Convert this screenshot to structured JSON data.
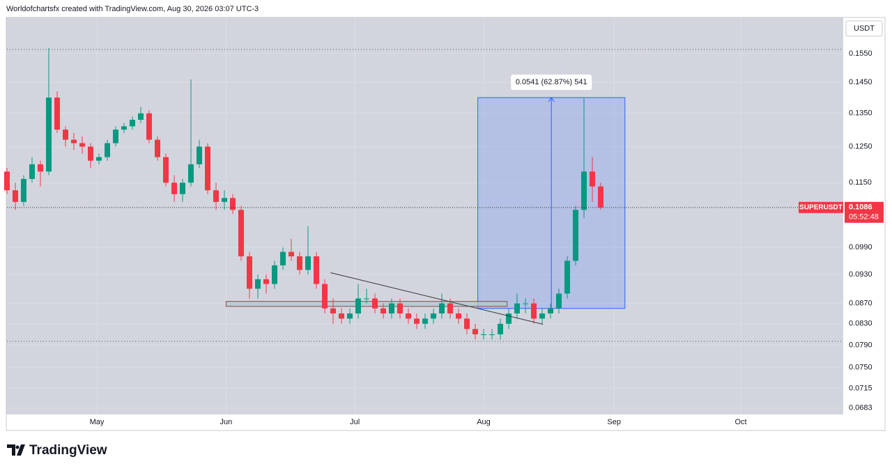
{
  "header": {
    "text": "Worldofchartsfx created with TradingView.com, Aug 30, 2026 03:07 UTC-3"
  },
  "footer": {
    "brand": "TradingView"
  },
  "chart_data": {
    "type": "candlestick",
    "symbol": "SUPERUSDT",
    "currency": "USDT",
    "last_price": 0.1086,
    "countdown": "05:52:48",
    "log_scale": true,
    "grid": true,
    "up_color": "#089981",
    "down_color": "#f23645",
    "x": [
      0,
      1,
      2,
      3,
      4,
      5,
      6,
      7,
      8,
      9,
      10,
      11,
      12,
      13,
      14,
      15,
      16,
      17,
      18,
      19,
      20,
      21,
      22,
      23,
      24,
      25,
      26,
      27,
      28,
      29,
      30,
      31,
      32,
      33,
      34,
      35,
      36,
      37,
      38,
      39,
      40,
      41,
      42,
      43,
      44,
      45,
      46,
      47,
      48,
      49,
      50,
      51,
      52,
      53,
      54,
      55,
      56,
      57,
      58,
      59,
      60,
      61,
      62,
      63,
      64,
      65,
      66,
      67,
      68,
      69,
      70,
      71
    ],
    "open": [
      0.118,
      0.113,
      0.11,
      0.116,
      0.12,
      0.118,
      0.14,
      0.13,
      0.127,
      0.126,
      0.125,
      0.121,
      0.122,
      0.126,
      0.13,
      0.131,
      0.133,
      0.135,
      0.127,
      0.122,
      0.115,
      0.112,
      0.115,
      0.12,
      0.125,
      0.113,
      0.11,
      0.111,
      0.108,
      0.097,
      0.09,
      0.092,
      0.091,
      0.095,
      0.098,
      0.097,
      0.094,
      0.097,
      0.091,
      0.086,
      0.085,
      0.084,
      0.085,
      0.088,
      0.088,
      0.086,
      0.085,
      0.087,
      0.085,
      0.084,
      0.083,
      0.084,
      0.085,
      0.087,
      0.085,
      0.084,
      0.082,
      0.081,
      0.081,
      0.081,
      0.083,
      0.085,
      0.087,
      0.087,
      0.084,
      0.085,
      0.086,
      0.089,
      0.096,
      0.108,
      0.118,
      0.114
    ],
    "high": [
      0.119,
      0.115,
      0.117,
      0.122,
      0.121,
      0.157,
      0.142,
      0.131,
      0.129,
      0.128,
      0.126,
      0.123,
      0.127,
      0.131,
      0.132,
      0.134,
      0.137,
      0.136,
      0.128,
      0.123,
      0.117,
      0.116,
      0.146,
      0.127,
      0.126,
      0.115,
      0.113,
      0.112,
      0.109,
      0.098,
      0.093,
      0.093,
      0.096,
      0.099,
      0.101,
      0.098,
      0.104,
      0.098,
      0.092,
      0.088,
      0.086,
      0.086,
      0.091,
      0.09,
      0.089,
      0.087,
      0.088,
      0.088,
      0.086,
      0.085,
      0.085,
      0.086,
      0.089,
      0.088,
      0.086,
      0.085,
      0.083,
      0.082,
      0.082,
      0.084,
      0.086,
      0.089,
      0.088,
      0.088,
      0.086,
      0.087,
      0.09,
      0.097,
      0.109,
      0.14,
      0.122,
      0.115
    ],
    "low": [
      0.112,
      0.108,
      0.109,
      0.115,
      0.114,
      0.117,
      0.129,
      0.125,
      0.124,
      0.123,
      0.119,
      0.12,
      0.121,
      0.125,
      0.129,
      0.13,
      0.132,
      0.126,
      0.121,
      0.114,
      0.11,
      0.11,
      0.114,
      0.119,
      0.112,
      0.108,
      0.108,
      0.107,
      0.096,
      0.088,
      0.088,
      0.089,
      0.09,
      0.094,
      0.096,
      0.093,
      0.093,
      0.09,
      0.085,
      0.083,
      0.083,
      0.083,
      0.084,
      0.087,
      0.085,
      0.084,
      0.084,
      0.084,
      0.083,
      0.082,
      0.082,
      0.083,
      0.084,
      0.084,
      0.083,
      0.081,
      0.08,
      0.08,
      0.08,
      0.08,
      0.082,
      0.084,
      0.085,
      0.083,
      0.083,
      0.084,
      0.085,
      0.088,
      0.095,
      0.106,
      0.11,
      0.108
    ],
    "close": [
      0.113,
      0.11,
      0.116,
      0.12,
      0.118,
      0.14,
      0.13,
      0.127,
      0.126,
      0.125,
      0.121,
      0.122,
      0.126,
      0.13,
      0.131,
      0.133,
      0.135,
      0.127,
      0.122,
      0.115,
      0.112,
      0.115,
      0.12,
      0.125,
      0.113,
      0.11,
      0.111,
      0.108,
      0.097,
      0.09,
      0.092,
      0.091,
      0.095,
      0.098,
      0.097,
      0.094,
      0.097,
      0.091,
      0.086,
      0.085,
      0.084,
      0.085,
      0.088,
      0.088,
      0.086,
      0.085,
      0.087,
      0.085,
      0.084,
      0.083,
      0.084,
      0.085,
      0.087,
      0.085,
      0.084,
      0.082,
      0.081,
      0.081,
      0.081,
      0.083,
      0.085,
      0.087,
      0.087,
      0.084,
      0.085,
      0.086,
      0.089,
      0.096,
      0.108,
      0.118,
      0.114,
      0.1086
    ],
    "xlim": [
      0,
      100
    ],
    "xticks": [
      {
        "value": 10.75,
        "label": "May"
      },
      {
        "value": 26.2,
        "label": "Jun"
      },
      {
        "value": 41.6,
        "label": "Jul"
      },
      {
        "value": 57,
        "label": "Aug"
      },
      {
        "value": 72.6,
        "label": "Sep"
      },
      {
        "value": 87.75,
        "label": "Oct"
      }
    ],
    "ylim": [
      0.0673,
      0.1685
    ],
    "yticks": [
      {
        "value": 0.155,
        "label": "0.1550"
      },
      {
        "value": 0.145,
        "label": "0.1450"
      },
      {
        "value": 0.135,
        "label": "0.1350"
      },
      {
        "value": 0.125,
        "label": "0.1250"
      },
      {
        "value": 0.115,
        "label": "0.1150"
      },
      {
        "value": 0.099,
        "label": "0.0990"
      },
      {
        "value": 0.093,
        "label": "0.0930"
      },
      {
        "value": 0.087,
        "label": "0.0870"
      },
      {
        "value": 0.083,
        "label": "0.0830"
      },
      {
        "value": 0.079,
        "label": "0.0790"
      },
      {
        "value": 0.075,
        "label": "0.0750"
      },
      {
        "value": 0.0715,
        "label": "0.0715"
      },
      {
        "value": 0.0683,
        "label": "0.0683"
      }
    ],
    "hlines": [
      0.1565,
      0.0797
    ],
    "zone": {
      "x": [
        26.2,
        59.8
      ],
      "y": [
        0.0864,
        0.0874
      ]
    },
    "trendline": {
      "x": [
        38.7,
        64.1
      ],
      "y": [
        0.0934,
        0.0829
      ]
    },
    "measure": {
      "x": [
        56.3,
        73.9
      ],
      "y": [
        0.086,
        0.14
      ],
      "label": "0.0541 (62.87%) 541"
    }
  }
}
